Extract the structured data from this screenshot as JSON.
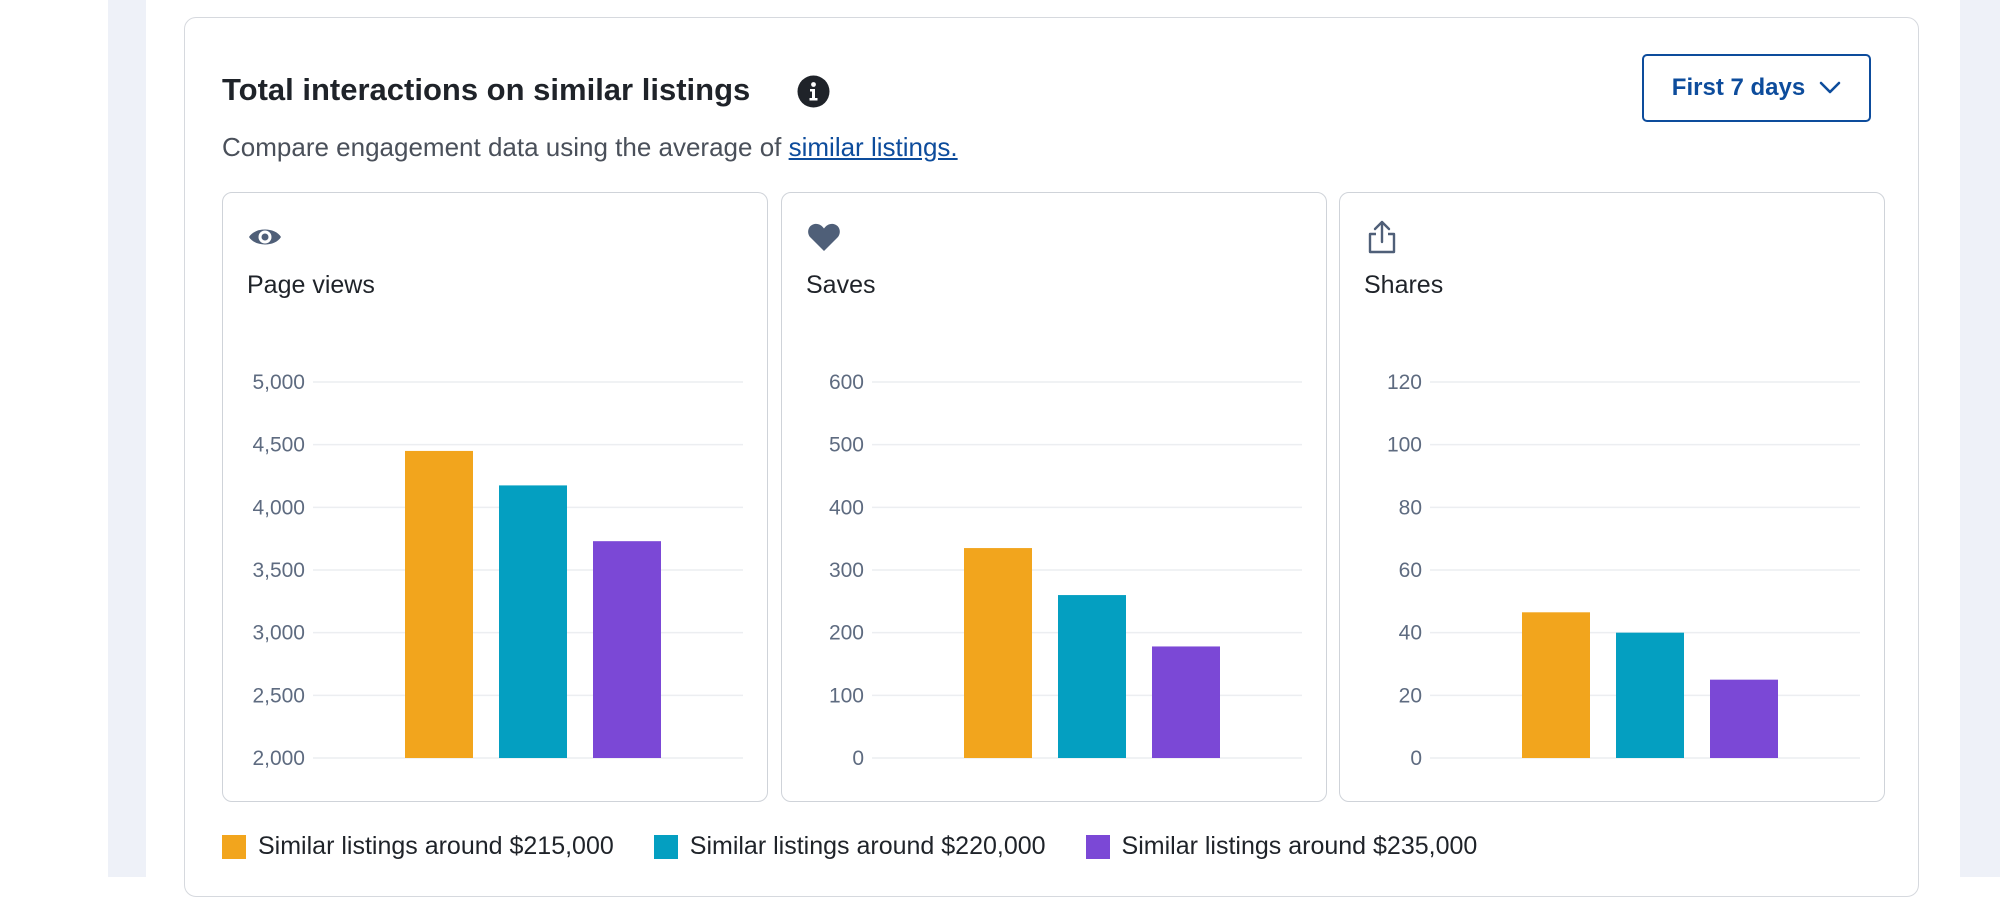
{
  "header": {
    "title": "Total interactions on similar listings",
    "subtitle_text": "Compare engagement data using the average of ",
    "subtitle_link": "similar listings."
  },
  "period_dropdown": {
    "label": "First 7 days"
  },
  "icons": {
    "info": "info-icon",
    "dropdown": "chevron-down-icon",
    "page_views": "eye-icon",
    "saves": "heart-icon",
    "shares": "share-icon"
  },
  "colors": {
    "series_215k": "#f2a51d",
    "series_220k": "#049fc1",
    "series_235k": "#7b48d6",
    "link": "#0d4c9c"
  },
  "legend": [
    {
      "label": "Similar listings around $215,000",
      "color": "#f2a51d"
    },
    {
      "label": "Similar listings around $220,000",
      "color": "#049fc1"
    },
    {
      "label": "Similar listings around $235,000",
      "color": "#7b48d6"
    }
  ],
  "chart_data": [
    {
      "type": "bar",
      "title": "Page views",
      "categories": [
        "Similar listings around $215,000",
        "Similar listings around $220,000",
        "Similar listings around $235,000"
      ],
      "values": [
        4450,
        4175,
        3730
      ],
      "colors": [
        "#f2a51d",
        "#049fc1",
        "#7b48d6"
      ],
      "ylim": [
        2000,
        5000
      ],
      "yticks": [
        2000,
        2500,
        3000,
        3500,
        4000,
        4500,
        5000
      ],
      "ytick_labels": [
        "2,000",
        "2,500",
        "3,000",
        "3,500",
        "4,000",
        "4,500",
        "5,000"
      ],
      "grid": true
    },
    {
      "type": "bar",
      "title": "Saves",
      "categories": [
        "Similar listings around $215,000",
        "Similar listings around $220,000",
        "Similar listings around $235,000"
      ],
      "values": [
        335,
        260,
        178
      ],
      "colors": [
        "#f2a51d",
        "#049fc1",
        "#7b48d6"
      ],
      "ylim": [
        0,
        600
      ],
      "yticks": [
        0,
        100,
        200,
        300,
        400,
        500,
        600
      ],
      "ytick_labels": [
        "0",
        "100",
        "200",
        "300",
        "400",
        "500",
        "600"
      ],
      "grid": true
    },
    {
      "type": "bar",
      "title": "Shares",
      "categories": [
        "Similar listings around $215,000",
        "Similar listings around $220,000",
        "Similar listings around $235,000"
      ],
      "values": [
        46.5,
        40,
        25
      ],
      "colors": [
        "#f2a51d",
        "#049fc1",
        "#7b48d6"
      ],
      "ylim": [
        0,
        120
      ],
      "yticks": [
        0,
        20,
        40,
        60,
        80,
        100,
        120
      ],
      "ytick_labels": [
        "0",
        "20",
        "40",
        "60",
        "80",
        "100",
        "120"
      ],
      "grid": true
    }
  ]
}
